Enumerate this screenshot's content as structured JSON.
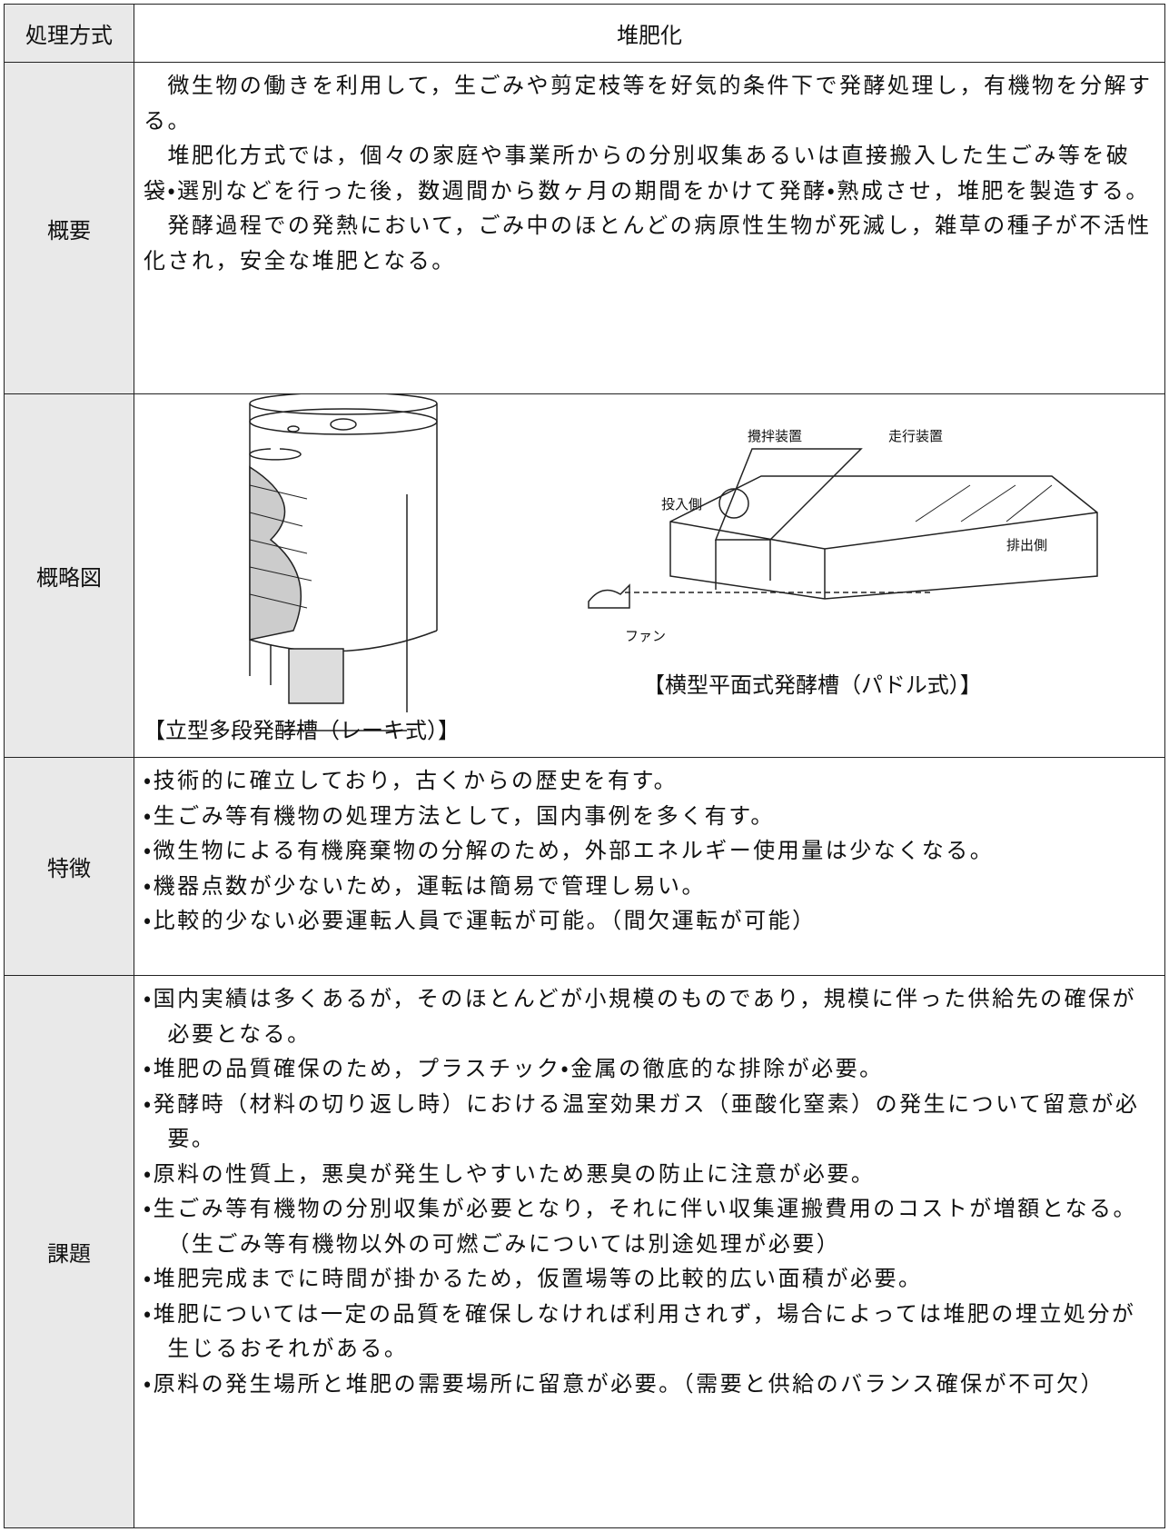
{
  "header": {
    "label": "処理方式",
    "title": "堆肥化"
  },
  "overview": {
    "label": "概要",
    "paragraphs": [
      "微生物の働きを利用して，生ごみや剪定枝等を好気的条件下で発酵処理し，有機物を分解する。",
      "堆肥化方式では，個々の家庭や事業所からの分別収集あるいは直接搬入した生ごみ等を破袋・選別などを行った後，数週間から数ヶ月の期間をかけて発酵・熟成させ，堆肥を製造する。",
      "発酵過程での発熱において，ごみ中のほとんどの病原性生物が死滅し，雑草の種子が不活性化され，安全な堆肥となる。"
    ]
  },
  "diagram": {
    "label": "概略図",
    "vertical": {
      "caption": "【立型多段発酵槽（レーキ式）】"
    },
    "horizontal": {
      "caption": "【横型平面式発酵槽（パドル式）】",
      "labels": [
        "攪拌装置",
        "走行装置",
        "投入側",
        "排出側",
        "ファン"
      ]
    }
  },
  "features": {
    "label": "特徴",
    "items": [
      "・技術的に確立しており，古くからの歴史を有す。",
      "・生ごみ等有機物の処理方法として，国内事例を多く有す。",
      "・微生物による有機廃棄物の分解のため，外部エネルギー使用量は少なくなる。",
      "・機器点数が少ないため，運転は簡易で管理し易い。",
      "・比較的少ない必要運転人員で運転が可能。（間欠運転が可能）"
    ]
  },
  "issues": {
    "label": "課題",
    "items": [
      "・国内実績は多くあるが，そのほとんどが小規模のものであり，規模に伴った供給先の確保が必要となる。",
      "・堆肥の品質確保のため，プラスチック・金属の徹底的な排除が必要。",
      "・発酵時（材料の切り返し時）における温室効果ガス（亜酸化窒素）の発生について留意が必要。",
      "・原料の性質上，悪臭が発生しやすいため悪臭の防止に注意が必要。",
      "・生ごみ等有機物の分別収集が必要となり，それに伴い収集運搬費用のコストが増額となる。（生ごみ等有機物以外の可燃ごみについては別途処理が必要）",
      "・堆肥完成までに時間が掛かるため，仮置場等の比較的広い面積が必要。",
      "・堆肥については一定の品質を確保しなければ利用されず，場合によっては堆肥の埋立処分が生じるおそれがある。",
      "・原料の発生場所と堆肥の需要場所に留意が必要。（需要と供給のバランス確保が不可欠）"
    ]
  }
}
